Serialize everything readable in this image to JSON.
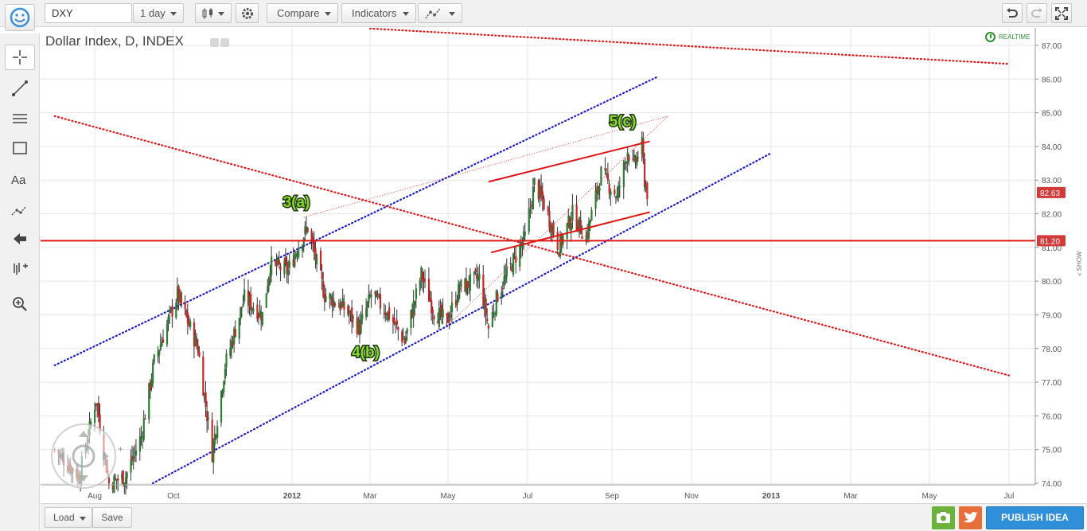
{
  "toolbar": {
    "symbol": "DXY",
    "interval": "1 day",
    "compare": "Compare",
    "indicators": "Indicators"
  },
  "header": {
    "title": "Dollar Index, D, INDEX",
    "realtime": "REALTIME",
    "show_tab": "« SHOW"
  },
  "bottom": {
    "load": "Load",
    "save": "Save",
    "publish": "PUBLISH IDEA"
  },
  "colors": {
    "bull_candle": "#2e7d32",
    "bear_candle": "#c62828",
    "blue_channel": "#1a1acc",
    "red_line": "#e01515",
    "price_tag": "#d33a3a",
    "publish": "#2f8fd8"
  },
  "chart_data": {
    "type": "candlestick",
    "title": "Dollar Index, D, INDEX",
    "y_ticks": [
      "74.00",
      "75.00",
      "76.00",
      "77.00",
      "78.00",
      "79.00",
      "80.00",
      "81.00",
      "82.00",
      "83.00",
      "84.00",
      "85.00",
      "86.00",
      "87.00"
    ],
    "ylim": [
      74,
      87.8
    ],
    "x_tick_labels": [
      "Aug",
      "Oct",
      "2012",
      "Mar",
      "May",
      "Jul",
      "Sep",
      "Nov",
      "2013",
      "Mar",
      "May",
      "Jul"
    ],
    "x_tick_dates": [
      "2011-08-01",
      "2011-10-01",
      "2012-01-01",
      "2012-03-01",
      "2012-05-01",
      "2012-07-01",
      "2012-09-01",
      "2012-11-01",
      "2013-01-01",
      "2013-03-01",
      "2013-05-01",
      "2013-07-01"
    ],
    "last_price": "82.63",
    "horizontal_level": "81.20",
    "series_path": [
      [
        "2011-07-01",
        75.0
      ],
      [
        "2011-07-20",
        74.2
      ],
      [
        "2011-08-02",
        76.5
      ],
      [
        "2011-08-12",
        74.0
      ],
      [
        "2011-08-25",
        74.2
      ],
      [
        "2011-09-06",
        75.4
      ],
      [
        "2011-09-16",
        77.6
      ],
      [
        "2011-10-04",
        79.6
      ],
      [
        "2011-10-20",
        78.0
      ],
      [
        "2011-10-31",
        74.9
      ],
      [
        "2011-11-10",
        77.5
      ],
      [
        "2011-11-25",
        79.5
      ],
      [
        "2011-12-09",
        79.0
      ],
      [
        "2011-12-15",
        80.5
      ],
      [
        "2011-12-29",
        80.3
      ],
      [
        "2012-01-05",
        81.0
      ],
      [
        "2012-01-13",
        81.6
      ],
      [
        "2012-01-26",
        79.6
      ],
      [
        "2012-02-10",
        79.2
      ],
      [
        "2012-02-22",
        78.6
      ],
      [
        "2012-03-02",
        79.6
      ],
      [
        "2012-03-16",
        79.0
      ],
      [
        "2012-03-28",
        78.2
      ],
      [
        "2012-04-10",
        80.2
      ],
      [
        "2012-04-20",
        79.1
      ],
      [
        "2012-04-30",
        78.8
      ],
      [
        "2012-05-10",
        79.8
      ],
      [
        "2012-05-25",
        80.1
      ],
      [
        "2012-06-01",
        78.6
      ],
      [
        "2012-06-08",
        79.6
      ],
      [
        "2012-06-20",
        80.6
      ],
      [
        "2012-06-29",
        81.3
      ],
      [
        "2012-07-06",
        82.9
      ],
      [
        "2012-07-13",
        82.3
      ],
      [
        "2012-07-24",
        81.0
      ],
      [
        "2012-08-03",
        82.0
      ],
      [
        "2012-08-13",
        81.3
      ],
      [
        "2012-08-24",
        83.2
      ],
      [
        "2012-09-05",
        82.5
      ],
      [
        "2012-09-13",
        83.9
      ],
      [
        "2012-09-17",
        83.4
      ],
      [
        "2012-09-24",
        84.0
      ],
      [
        "2012-09-26",
        83.0
      ],
      [
        "2012-09-28",
        82.63
      ]
    ],
    "annotations": [
      "3(a)",
      "4(b)",
      "5(c)"
    ]
  }
}
